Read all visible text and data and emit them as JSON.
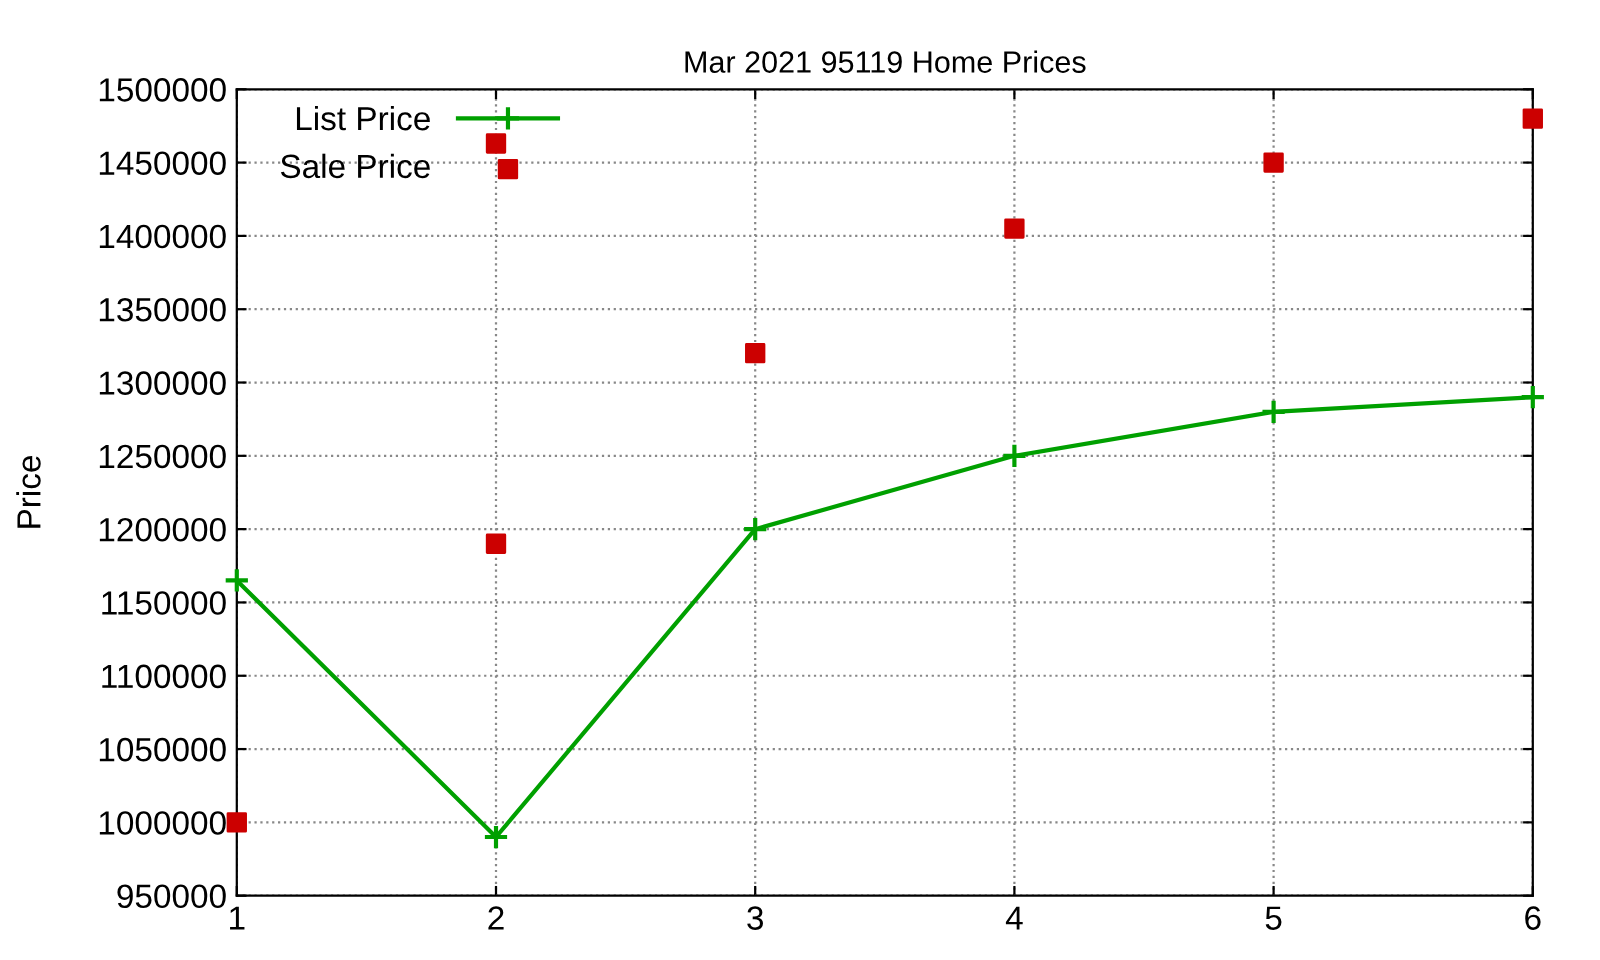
{
  "chart_data": {
    "type": "line",
    "title": "Mar 2021 95119 Home Prices",
    "ylabel": "Price",
    "xlim": [
      1,
      6
    ],
    "xticks": [
      1,
      2,
      3,
      4,
      5,
      6
    ],
    "ylim": [
      950000,
      1500000
    ],
    "yticks": [
      950000,
      1000000,
      1050000,
      1100000,
      1150000,
      1200000,
      1250000,
      1300000,
      1350000,
      1400000,
      1450000,
      1500000
    ],
    "grid": true,
    "legend": "top left",
    "series": [
      {
        "name": "List Price",
        "color": "#00a000",
        "marker": "cross",
        "line_style": "solid",
        "x": [
          1,
          2,
          3,
          4,
          5,
          6
        ],
        "values": [
          1165000,
          990000,
          1200000,
          1250000,
          1280000,
          1290000
        ]
      },
      {
        "name": "Sale Price",
        "type": "scatter",
        "color": "#cc0000",
        "marker": "square",
        "x": [
          1,
          2,
          2,
          3,
          4,
          5,
          6
        ],
        "values": [
          1000000,
          1190000,
          1463000,
          1320000,
          1405000,
          1450000,
          1480000
        ]
      }
    ]
  }
}
